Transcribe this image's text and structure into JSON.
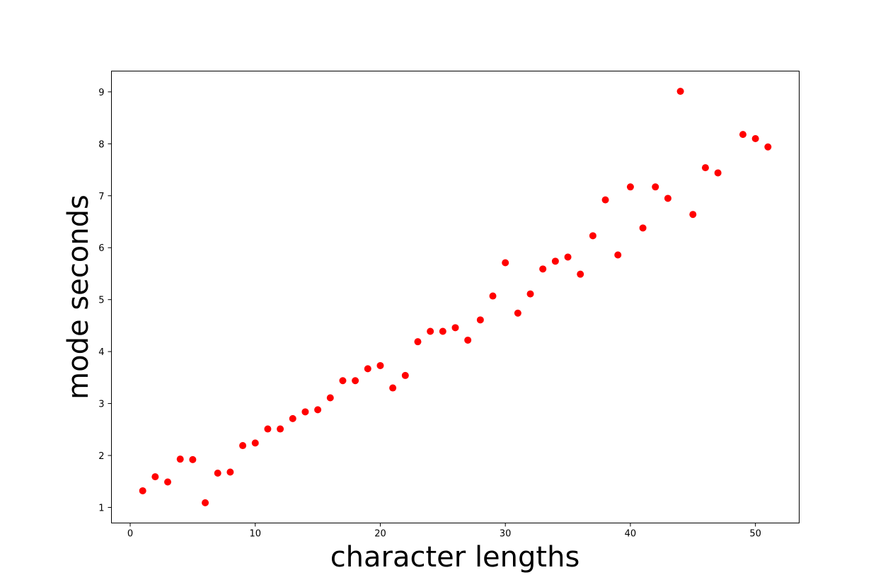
{
  "chart_data": {
    "type": "scatter",
    "title": "",
    "xlabel": "character lengths",
    "ylabel": "mode seconds",
    "xlim": [
      -1.5,
      53.5
    ],
    "ylim": [
      0.7,
      9.4
    ],
    "xticks": [
      0,
      10,
      20,
      30,
      40,
      50
    ],
    "yticks": [
      1,
      2,
      3,
      4,
      5,
      6,
      7,
      8,
      9
    ],
    "grid": false,
    "legend": "none",
    "marker_color": "#ff0000",
    "series": [
      {
        "x": [
          1,
          2,
          3,
          4,
          5,
          6,
          7,
          8,
          9,
          10,
          11,
          12,
          13,
          14,
          15,
          16,
          17,
          18,
          19,
          20,
          21,
          22,
          23,
          24,
          25,
          26,
          27,
          28,
          29,
          30,
          31,
          32,
          33,
          34,
          35,
          36,
          37,
          38,
          39,
          40,
          41,
          42,
          43,
          44,
          45,
          46,
          47,
          49,
          50,
          51
        ],
        "y": [
          1.32,
          1.59,
          1.49,
          1.93,
          1.92,
          1.09,
          1.66,
          1.68,
          2.19,
          2.24,
          2.51,
          2.51,
          2.71,
          2.84,
          2.88,
          3.11,
          3.44,
          3.44,
          3.67,
          3.73,
          3.3,
          3.54,
          4.19,
          4.39,
          4.39,
          4.46,
          4.22,
          4.61,
          5.07,
          5.71,
          4.74,
          5.11,
          5.59,
          5.74,
          5.82,
          5.49,
          6.23,
          6.92,
          5.86,
          7.17,
          6.38,
          7.17,
          6.95,
          9.01,
          6.64,
          7.54,
          7.44,
          8.18,
          8.1,
          7.94
        ]
      }
    ]
  }
}
